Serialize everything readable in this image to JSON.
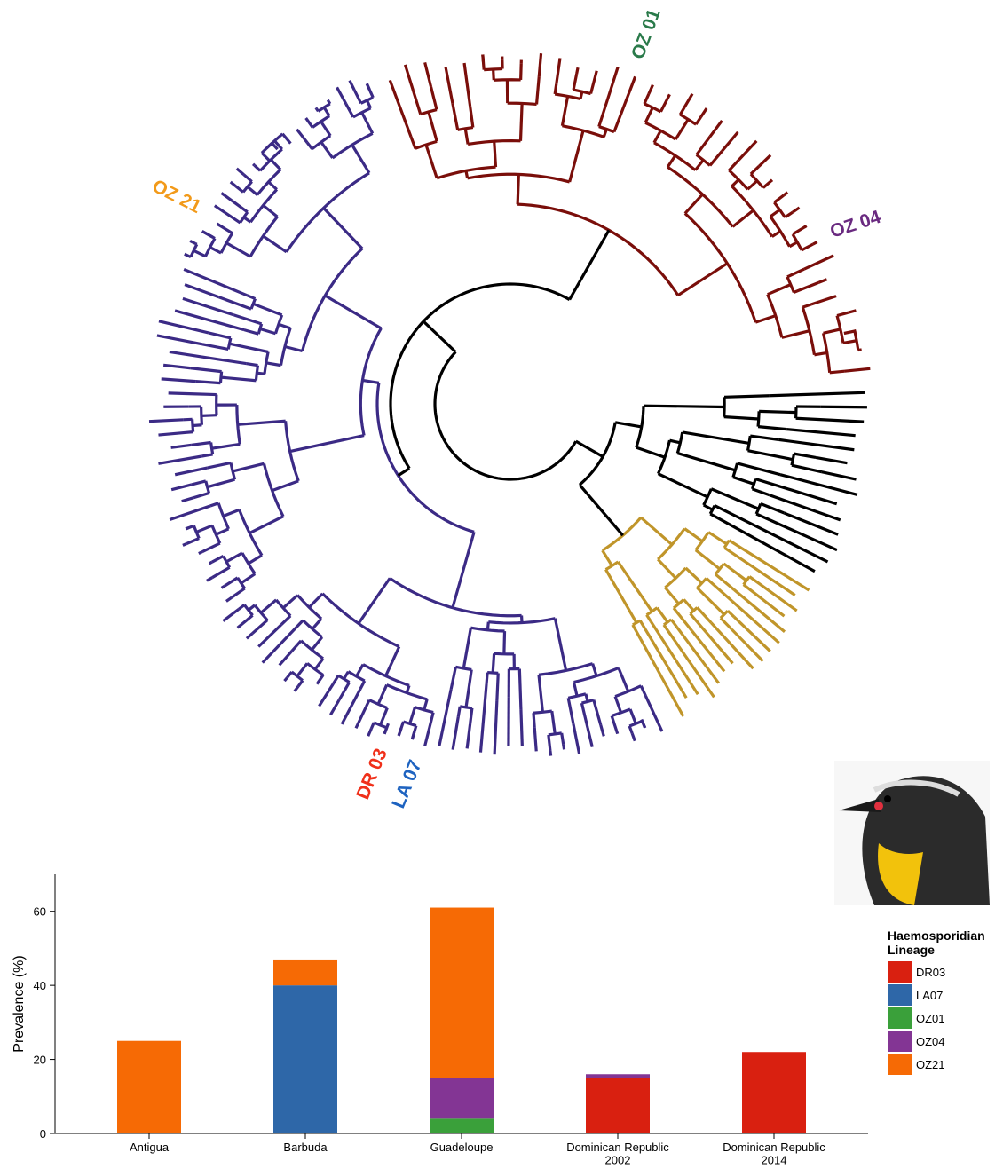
{
  "tree": {
    "labels": [
      "OZ 01",
      "OZ 04",
      "OZ 21",
      "DR 03",
      "LA 07"
    ]
  },
  "chart_data": {
    "type": "stacked-bar",
    "y_label": "Prevalence (%)",
    "legend_title": "Haemosporidian Lineage",
    "categories": [
      "Antigua",
      "Barbuda",
      "Guadeloupe",
      "Dominican Republic\n2002",
      "Dominican Republic\n2014"
    ],
    "series": [
      {
        "name": "DR03",
        "color": "#d92010",
        "values": [
          0,
          0,
          0,
          15,
          22
        ]
      },
      {
        "name": "LA07",
        "color": "#2e67a8",
        "values": [
          0,
          40,
          0,
          0,
          0
        ]
      },
      {
        "name": "OZ01",
        "color": "#3aa03a",
        "values": [
          0,
          0,
          4,
          0,
          0
        ]
      },
      {
        "name": "OZ04",
        "color": "#833594",
        "values": [
          0,
          0,
          11,
          1,
          0
        ]
      },
      {
        "name": "OZ21",
        "color": "#f66a05",
        "values": [
          25,
          7,
          46,
          0,
          0
        ]
      }
    ],
    "ylim": [
      0,
      70
    ],
    "yticks": [
      0,
      20,
      40,
      60
    ],
    "grid": false,
    "legend": "right"
  }
}
